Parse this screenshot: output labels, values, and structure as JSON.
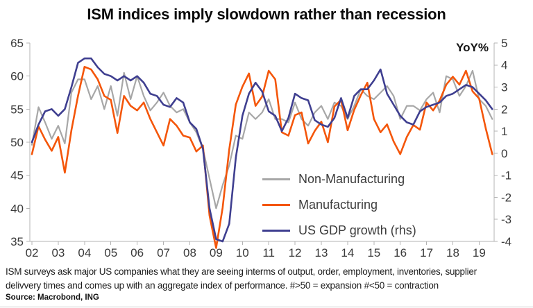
{
  "title": "ISM indices imply slowdown rather than recession",
  "footnote_line1": "ISM surveys ask major US companies what they are seeing interms of output, order, employment, inventories, supplier",
  "footnote_line2": "delivvery times and comes up with an aggregate index of performance. #>50 = expansion #<50 = contraction",
  "source": "Source: Macrobond, ING",
  "colors": {
    "non_manufacturing": "#a7a7a7",
    "manufacturing": "#f4560a",
    "gdp": "#3f3f90",
    "axis": "#b3b3b3",
    "tick_text": "#3a3a3a"
  },
  "chart_data": {
    "type": "line",
    "title": "ISM indices imply slowdown rather than recession",
    "x_domain": [
      2001.92,
      2019.57
    ],
    "x_tick_labels": [
      "02",
      "03",
      "04",
      "05",
      "06",
      "07",
      "08",
      "09",
      "10",
      "11",
      "12",
      "13",
      "14",
      "15",
      "16",
      "17",
      "18",
      "19"
    ],
    "left_axis": {
      "min": 35,
      "max": 65,
      "ticks": [
        65,
        60,
        55,
        50,
        45,
        40,
        35
      ]
    },
    "right_axis": {
      "min": -4,
      "max": 5,
      "ticks": [
        5,
        4,
        3,
        2,
        1,
        0,
        -1,
        -2,
        -3,
        -4
      ],
      "label": "YoY%"
    },
    "grid": false,
    "legend_position": "inside-lower-center",
    "series": [
      {
        "name": "Non-Manufacturing",
        "axis": "left",
        "color": "#a7a7a7",
        "x_start": 2002.0,
        "x_step": 0.25,
        "values": [
          49.6,
          55.3,
          53.0,
          50.5,
          52.5,
          49.8,
          57.5,
          59.5,
          59.5,
          56.5,
          58.5,
          55.0,
          58.5,
          54.0,
          60.5,
          56.5,
          60.0,
          57.0,
          54.8,
          56.0,
          57.5,
          55.5,
          54.5,
          55.0,
          53.0,
          51.5,
          49.0,
          44.5,
          40.0,
          43.5,
          46.5,
          51.0,
          50.5,
          54.5,
          53.5,
          54.5,
          56.5,
          53.5,
          53.5,
          53.0,
          56.0,
          53.5,
          52.5,
          54.5,
          55.5,
          53.5,
          56.0,
          55.5,
          53.5,
          55.5,
          58.0,
          57.0,
          56.5,
          57.5,
          58.5,
          57.0,
          53.5,
          55.5,
          55.5,
          54.8,
          56.5,
          57.5,
          54.5,
          60.0,
          59.5,
          57.0,
          58.5,
          60.8,
          56.5,
          55.5,
          53.5
        ]
      },
      {
        "name": "Manufacturing",
        "axis": "left",
        "color": "#f4560a",
        "x_start": 2002.0,
        "x_step": 0.25,
        "values": [
          48.2,
          52.4,
          50.4,
          48.7,
          50.8,
          45.4,
          51.8,
          57.0,
          61.4,
          61.0,
          59.5,
          57.0,
          56.4,
          51.4,
          57.0,
          55.5,
          54.8,
          56.0,
          53.5,
          51.5,
          49.5,
          53.5,
          52.5,
          51.0,
          50.7,
          48.6,
          49.5,
          38.9,
          34.0,
          40.1,
          48.9,
          55.7,
          58.4,
          60.4,
          55.5,
          56.9,
          60.8,
          59.5,
          51.5,
          51.0,
          54.1,
          54.5,
          49.8,
          51.7,
          53.1,
          50.0,
          55.4,
          56.4,
          51.8,
          54.9,
          57.1,
          59.0,
          53.5,
          51.5,
          52.7,
          50.1,
          48.2,
          50.8,
          52.6,
          51.9,
          56.0,
          54.8,
          56.3,
          58.7,
          59.9,
          58.7,
          60.8,
          57.7,
          56.6,
          52.1,
          48.2
        ]
      },
      {
        "name": "US GDP growth (rhs)",
        "axis": "right",
        "color": "#3f3f90",
        "x_start": 2002.0,
        "x_step": 0.25,
        "values": [
          0.5,
          1.3,
          1.9,
          2.0,
          1.7,
          2.0,
          3.0,
          4.1,
          4.3,
          4.3,
          3.9,
          3.6,
          3.5,
          3.3,
          3.5,
          3.3,
          3.5,
          3.2,
          2.7,
          2.6,
          2.2,
          2.1,
          2.5,
          2.3,
          1.4,
          1.1,
          0.2,
          -2.5,
          -3.9,
          -4.0,
          -3.2,
          -0.2,
          1.7,
          2.7,
          3.2,
          2.8,
          1.9,
          1.7,
          1.0,
          1.6,
          2.7,
          2.5,
          2.4,
          1.5,
          1.3,
          1.2,
          1.6,
          2.5,
          1.6,
          2.6,
          2.9,
          2.9,
          3.3,
          3.8,
          2.7,
          2.2,
          1.7,
          1.4,
          1.3,
          1.9,
          2.1,
          2.2,
          2.3,
          2.6,
          2.7,
          2.9,
          3.1,
          3.0,
          2.7,
          2.4,
          2.0
        ]
      }
    ]
  }
}
